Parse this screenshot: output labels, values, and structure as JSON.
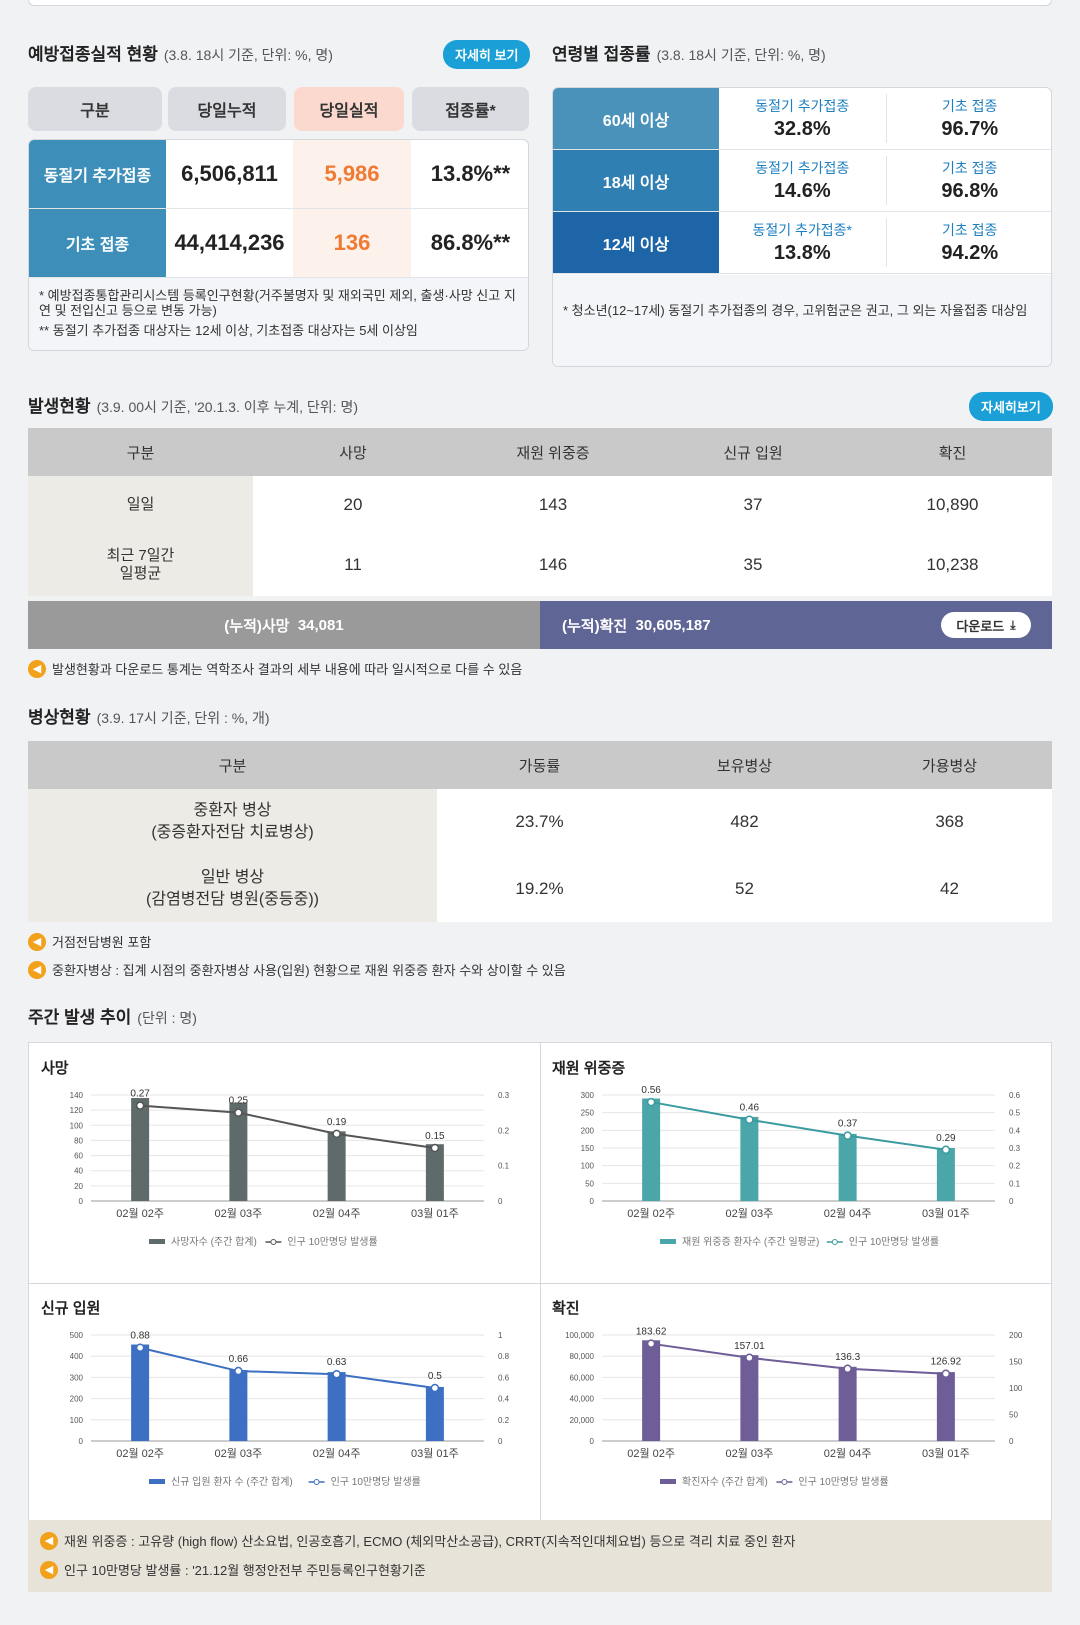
{
  "vaccination": {
    "title": "예방접종실적 현황",
    "subtitle": "(3.8. 18시 기준, 단위: %, 명)",
    "detail_button": "자세히 보기",
    "headers": [
      "구분",
      "당일누적",
      "당일실적",
      "접종률*"
    ],
    "rows": [
      {
        "label": "동절기 추가접종",
        "cumulative": "6,506,811",
        "daily": "5,986",
        "rate": "13.8%**"
      },
      {
        "label": "기초 접종",
        "cumulative": "44,414,236",
        "daily": "136",
        "rate": "86.8%**"
      }
    ],
    "notes": [
      "* 예방접종통합관리시스템 등록인구현황(거주불명자 및 재외국민 제외, 출생·사망 신고 지연 및 전입신고 등으로 변동 가능)",
      "** 동절기 추가접종 대상자는 12세 이상, 기초접종 대상자는 5세 이상임"
    ]
  },
  "age_rate": {
    "title": "연령별 접종률",
    "subtitle": "(3.8. 18시 기준, 단위: %, 명)",
    "rows": [
      {
        "label": "60세 이상",
        "k1": "동절기 추가접종",
        "v1": "32.8%",
        "k2": "기초 접종",
        "v2": "96.7%",
        "color": "#4a92b9"
      },
      {
        "label": "18세 이상",
        "k1": "동절기 추가접종",
        "v1": "14.6%",
        "k2": "기초 접종",
        "v2": "96.8%",
        "color": "#2f7fb3"
      },
      {
        "label": "12세 이상",
        "k1": "동절기 추가접종*",
        "v1": "13.8%",
        "k2": "기초 접종",
        "v2": "94.2%",
        "color": "#1d65a6"
      }
    ],
    "note": "* 청소년(12~17세) 동절기 추가접종의 경우, 고위험군은 권고, 그 외는 자율접종 대상임"
  },
  "occurrence": {
    "title": "발생현황",
    "subtitle": "(3.9. 00시 기준, '20.1.3. 이후 누계, 단위: 명)",
    "detail_button": "자세히보기",
    "headers": [
      "구분",
      "사망",
      "재원 위중증",
      "신규 입원",
      "확진"
    ],
    "rows": [
      {
        "label": "일일",
        "values": [
          "20",
          "143",
          "37",
          "10,890"
        ]
      },
      {
        "label": "최근 7일간\n일평균",
        "values": [
          "11",
          "146",
          "35",
          "10,238"
        ]
      }
    ],
    "cum_death_label": "(누적)사망",
    "cum_death": "34,081",
    "cum_conf_label": "(누적)확진",
    "cum_conf": "30,605,187",
    "download": "다운로드",
    "notice": "발생현황과 다운로드 통계는 역학조사 결과의 세부 내용에 따라 일시적으로 다를 수 있음"
  },
  "beds": {
    "title": "병상현황",
    "subtitle": "(3.9. 17시 기준, 단위 : %, 개)",
    "headers": [
      "구분",
      "가동률",
      "보유병상",
      "가용병상"
    ],
    "rows": [
      {
        "label": "중환자 병상\n(중증환자전담 치료병상)",
        "values": [
          "23.7%",
          "482",
          "368"
        ]
      },
      {
        "label": "일반 병상\n(감염병전담 병원(중등중))",
        "values": [
          "19.2%",
          "52",
          "42"
        ]
      }
    ],
    "notices": [
      "거점전담병원 포함",
      "중환자병상 : 집계 시점의 중환자병상 사용(입원) 현황으로 재원 위중증 환자 수와 상이할 수 있음"
    ]
  },
  "weekly": {
    "title": "주간 발생 추이",
    "subtitle": "(단위 : 명)",
    "notes": [
      "재원 위중증 : 고유량 (high flow) 산소요법, 인공호흡기, ECMO (체외막산소공급), CRRT(지속적인대체요법) 등으로 격리 치료 중인 환자",
      "인구 10만명당 발생률 : '21.12월 행정안전부 주민등록인구현황기준"
    ]
  },
  "chart_data": [
    {
      "type": "bar",
      "title": "사망",
      "categories": [
        "02월 02주",
        "02월 03주",
        "02월 04주",
        "03월 01주"
      ],
      "series": [
        {
          "name": "사망자수 (주간 합계)",
          "values": [
            136,
            130,
            92,
            75
          ],
          "axis": "left",
          "color": "#5f6b6b"
        },
        {
          "name": "인구 10만명당 발생률",
          "values": [
            0.27,
            0.25,
            0.19,
            0.15
          ],
          "axis": "right",
          "type": "line",
          "color": "#555555"
        }
      ],
      "left_ticks": [
        "0",
        "20",
        "40",
        "60",
        "80",
        "100",
        "120",
        "140"
      ],
      "left_max": 140,
      "right_ticks": [
        "0",
        "0.1",
        "0.2",
        "0.3"
      ],
      "right_max": 0.3,
      "value_labels": [
        "0.27",
        "0.25",
        "0.19",
        "0.15"
      ]
    },
    {
      "type": "bar",
      "title": "재원 위중증",
      "categories": [
        "02월 02주",
        "02월 03주",
        "02월 04주",
        "03월 01주"
      ],
      "series": [
        {
          "name": "재원 위중증 환자수 (주간 일평균)",
          "values": [
            290,
            238,
            190,
            150
          ],
          "axis": "left",
          "color": "#4aa6a8"
        },
        {
          "name": "인구 10만명당 발생률",
          "values": [
            0.56,
            0.46,
            0.37,
            0.29
          ],
          "axis": "right",
          "type": "line",
          "color": "#3c9ba0"
        }
      ],
      "left_ticks": [
        "0",
        "50",
        "100",
        "150",
        "200",
        "250",
        "300"
      ],
      "left_max": 300,
      "right_ticks": [
        "0",
        "0.1",
        "0.2",
        "0.3",
        "0.4",
        "0.5",
        "0.6"
      ],
      "right_max": 0.6,
      "value_labels": [
        "0.56",
        "0.46",
        "0.37",
        "0.29"
      ]
    },
    {
      "type": "bar",
      "title": "신규 입원",
      "categories": [
        "02월 02주",
        "02월 03주",
        "02월 04주",
        "03월 01주"
      ],
      "series": [
        {
          "name": "신규 입원 환자 수 (주간 합계)",
          "values": [
            455,
            335,
            325,
            255
          ],
          "axis": "left",
          "color": "#3d6fc2"
        },
        {
          "name": "인구 10만명당 발생률",
          "values": [
            0.88,
            0.66,
            0.63,
            0.5
          ],
          "axis": "right",
          "type": "line",
          "color": "#3d6fc2"
        }
      ],
      "left_ticks": [
        "0",
        "100",
        "200",
        "300",
        "400",
        "500"
      ],
      "left_max": 500,
      "right_ticks": [
        "0",
        "0.2",
        "0.4",
        "0.6",
        "0.8",
        "1"
      ],
      "right_max": 1,
      "value_labels": [
        "0.88",
        "0.66",
        "0.63",
        "0.5"
      ]
    },
    {
      "type": "bar",
      "title": "확진",
      "categories": [
        "02월 02주",
        "02월 03주",
        "02월 04주",
        "03월 01주"
      ],
      "series": [
        {
          "name": "확진자수 (주간 합계)",
          "values": [
            95000,
            81000,
            70000,
            65000
          ],
          "axis": "left",
          "color": "#6e5d97"
        },
        {
          "name": "인구 10만명당 발생률",
          "values": [
            183.62,
            157.01,
            136.3,
            126.92
          ],
          "axis": "right",
          "type": "line",
          "color": "#6e5d97"
        }
      ],
      "left_ticks": [
        "0",
        "20,000",
        "40,000",
        "60,000",
        "80,000",
        "100,000"
      ],
      "left_max": 100000,
      "right_ticks": [
        "0",
        "50",
        "100",
        "150",
        "200"
      ],
      "right_max": 200,
      "value_labels": [
        "183.62",
        "157.01",
        "136.3",
        "126.92"
      ]
    }
  ]
}
